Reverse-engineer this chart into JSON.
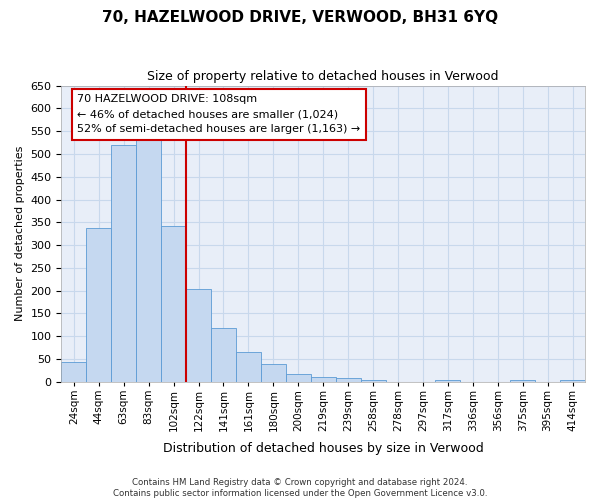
{
  "title": "70, HAZELWOOD DRIVE, VERWOOD, BH31 6YQ",
  "subtitle": "Size of property relative to detached houses in Verwood",
  "xlabel": "Distribution of detached houses by size in Verwood",
  "ylabel": "Number of detached properties",
  "categories": [
    "24sqm",
    "44sqm",
    "63sqm",
    "83sqm",
    "102sqm",
    "122sqm",
    "141sqm",
    "161sqm",
    "180sqm",
    "200sqm",
    "219sqm",
    "239sqm",
    "258sqm",
    "278sqm",
    "297sqm",
    "317sqm",
    "336sqm",
    "356sqm",
    "375sqm",
    "395sqm",
    "414sqm"
  ],
  "values": [
    43,
    338,
    519,
    535,
    342,
    204,
    118,
    65,
    38,
    18,
    10,
    9,
    4,
    0,
    0,
    3,
    0,
    0,
    5,
    0,
    5
  ],
  "bar_color": "#c5d8f0",
  "bar_edge_color": "#5b9bd5",
  "vline_x": 4.5,
  "vline_color": "#cc0000",
  "annotation_line1": "70 HAZELWOOD DRIVE: 108sqm",
  "annotation_line2": "← 46% of detached houses are smaller (1,024)",
  "annotation_line3": "52% of semi-detached houses are larger (1,163) →",
  "annotation_box_edgecolor": "#cc0000",
  "ylim": [
    0,
    650
  ],
  "yticks": [
    0,
    50,
    100,
    150,
    200,
    250,
    300,
    350,
    400,
    450,
    500,
    550,
    600,
    650
  ],
  "footer_line1": "Contains HM Land Registry data © Crown copyright and database right 2024.",
  "footer_line2": "Contains public sector information licensed under the Open Government Licence v3.0.",
  "grid_color": "#c8d8ec",
  "bg_color": "#e8eef8",
  "title_fontsize": 11,
  "subtitle_fontsize": 9,
  "ylabel_fontsize": 8,
  "xlabel_fontsize": 9,
  "tick_fontsize": 8,
  "xtick_fontsize": 7.5
}
